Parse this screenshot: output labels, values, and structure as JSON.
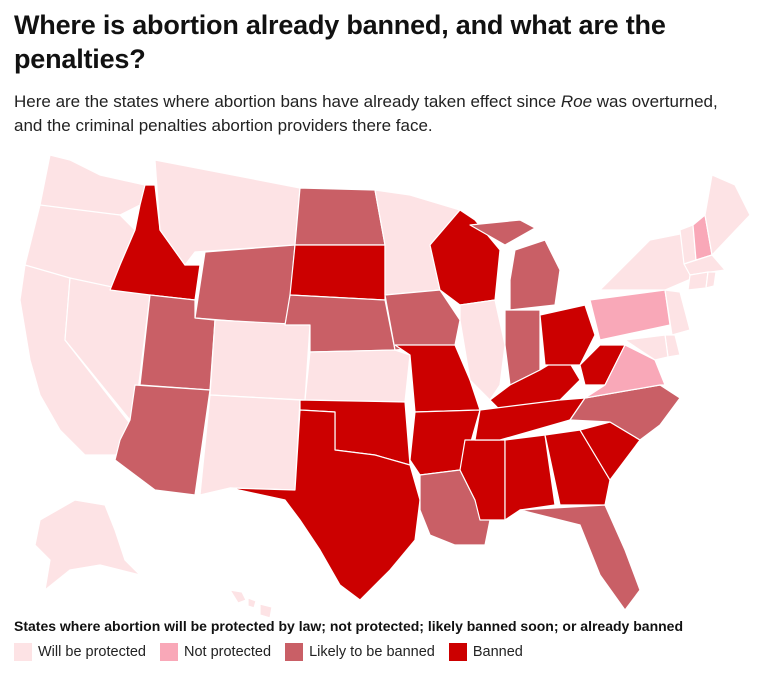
{
  "header": {
    "title": "Where is abortion already banned, and what are the penalties?",
    "subtitle_pre": "Here are the states where abortion bans have already taken effect since ",
    "subtitle_em": "Roe",
    "subtitle_post": " was overturned, and the criminal penalties abortion providers there face."
  },
  "colors": {
    "protected": "#fde3e5",
    "not_protected": "#f9a8b8",
    "likely_banned": "#c95f66",
    "banned": "#cc0000"
  },
  "legend": {
    "title": "States where abortion will be protected by law; not protected; likely banned soon; or already banned",
    "items": [
      {
        "label": "Will be protected",
        "status": "protected"
      },
      {
        "label": "Not protected",
        "status": "not_protected"
      },
      {
        "label": "Likely to be banned",
        "status": "likely_banned"
      },
      {
        "label": "Banned",
        "status": "banned"
      }
    ]
  },
  "map_data": {
    "states": [
      {
        "id": "WA",
        "status": "protected"
      },
      {
        "id": "OR",
        "status": "protected"
      },
      {
        "id": "CA",
        "status": "protected"
      },
      {
        "id": "NV",
        "status": "protected"
      },
      {
        "id": "ID",
        "status": "banned"
      },
      {
        "id": "MT",
        "status": "protected"
      },
      {
        "id": "WY",
        "status": "likely_banned"
      },
      {
        "id": "UT",
        "status": "likely_banned"
      },
      {
        "id": "AZ",
        "status": "likely_banned"
      },
      {
        "id": "CO",
        "status": "protected"
      },
      {
        "id": "NM",
        "status": "protected"
      },
      {
        "id": "ND",
        "status": "likely_banned"
      },
      {
        "id": "SD",
        "status": "banned"
      },
      {
        "id": "NE",
        "status": "likely_banned"
      },
      {
        "id": "KS",
        "status": "protected"
      },
      {
        "id": "OK",
        "status": "banned"
      },
      {
        "id": "TX",
        "status": "banned"
      },
      {
        "id": "MN",
        "status": "protected"
      },
      {
        "id": "IA",
        "status": "likely_banned"
      },
      {
        "id": "MO",
        "status": "banned"
      },
      {
        "id": "AR",
        "status": "banned"
      },
      {
        "id": "LA",
        "status": "likely_banned"
      },
      {
        "id": "WI",
        "status": "banned"
      },
      {
        "id": "IL",
        "status": "protected"
      },
      {
        "id": "MS",
        "status": "banned"
      },
      {
        "id": "MI",
        "status": "likely_banned"
      },
      {
        "id": "IN",
        "status": "likely_banned"
      },
      {
        "id": "KY",
        "status": "banned"
      },
      {
        "id": "TN",
        "status": "banned"
      },
      {
        "id": "AL",
        "status": "banned"
      },
      {
        "id": "OH",
        "status": "banned"
      },
      {
        "id": "WV",
        "status": "banned"
      },
      {
        "id": "GA",
        "status": "banned"
      },
      {
        "id": "FL",
        "status": "likely_banned"
      },
      {
        "id": "SC",
        "status": "banned"
      },
      {
        "id": "NC",
        "status": "likely_banned"
      },
      {
        "id": "VA",
        "status": "not_protected"
      },
      {
        "id": "PA",
        "status": "not_protected"
      },
      {
        "id": "NY",
        "status": "protected"
      },
      {
        "id": "VT",
        "status": "protected"
      },
      {
        "id": "NH",
        "status": "not_protected"
      },
      {
        "id": "ME",
        "status": "protected"
      },
      {
        "id": "MA",
        "status": "protected"
      },
      {
        "id": "CT",
        "status": "protected"
      },
      {
        "id": "RI",
        "status": "protected"
      },
      {
        "id": "NJ",
        "status": "protected"
      },
      {
        "id": "DE",
        "status": "protected"
      },
      {
        "id": "MD",
        "status": "protected"
      },
      {
        "id": "AK",
        "status": "protected"
      },
      {
        "id": "HI",
        "status": "protected"
      }
    ]
  }
}
